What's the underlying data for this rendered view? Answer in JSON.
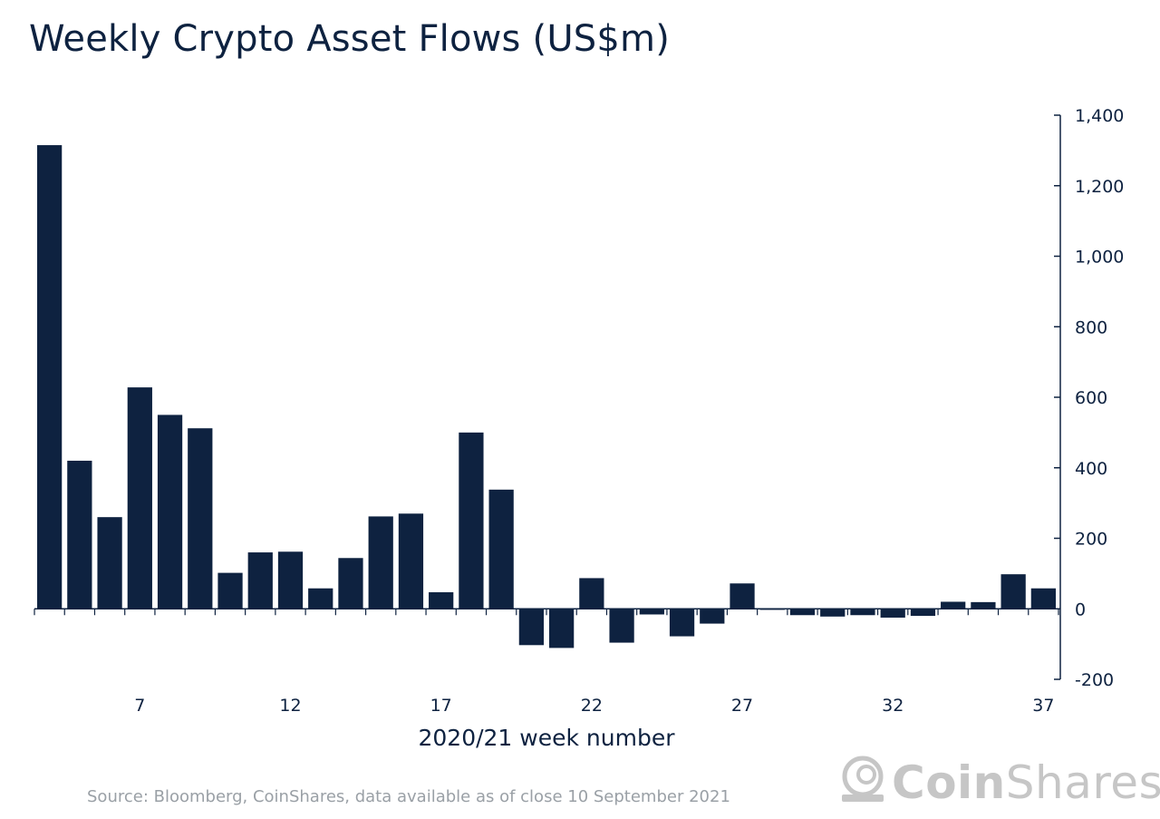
{
  "title": "Weekly Crypto Asset Flows (US$m)",
  "source": "Source: Bloomberg, CoinShares, data available as of close 10 September 2021",
  "logo": {
    "bold": "Coin",
    "light": "Shares"
  },
  "colors": {
    "bar": "#0e2240",
    "axis": "#0e2240",
    "text": "#0e2240",
    "source": "#9aa0a6",
    "logo": "#c6c6c6"
  },
  "chart_data": {
    "type": "bar",
    "title": "Weekly Crypto Asset Flows (US$m)",
    "xlabel": "2020/21 week number",
    "ylabel": "",
    "y_axis_side": "right",
    "ylim": [
      -200,
      1400
    ],
    "yticks": [
      -200,
      0,
      200,
      400,
      600,
      800,
      1000,
      1200,
      1400
    ],
    "ytick_labels": [
      "-200",
      "0",
      "200",
      "400",
      "600",
      "800",
      "1,000",
      "1,200",
      "1,400"
    ],
    "categories": [
      4,
      5,
      6,
      7,
      8,
      9,
      10,
      11,
      12,
      13,
      14,
      15,
      16,
      17,
      18,
      19,
      20,
      21,
      22,
      23,
      24,
      25,
      26,
      27,
      28,
      29,
      30,
      31,
      32,
      33,
      34,
      35,
      36,
      37
    ],
    "xtick_labels": [
      "7",
      "12",
      "17",
      "22",
      "27",
      "32",
      "37"
    ],
    "values": [
      1315,
      420,
      260,
      628,
      550,
      512,
      102,
      160,
      162,
      58,
      144,
      262,
      270,
      47,
      500,
      338,
      -103,
      -111,
      87,
      -96,
      -16,
      -78,
      -42,
      72,
      -3,
      -18,
      -22,
      -18,
      -25,
      -20,
      20,
      19,
      98,
      58
    ],
    "grid": false,
    "legend": "none"
  }
}
